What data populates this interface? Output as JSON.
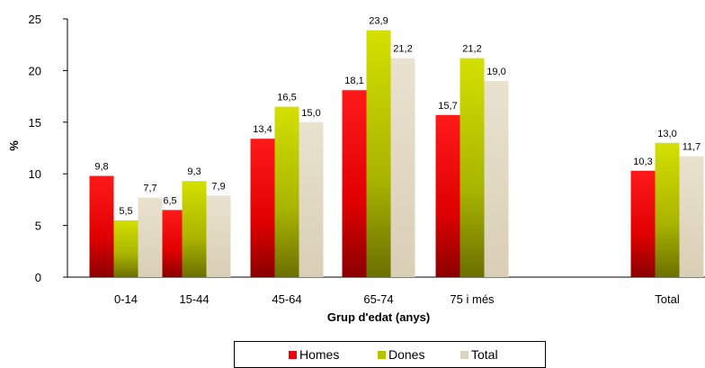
{
  "chart_data": {
    "type": "bar",
    "title": "",
    "xlabel": "Grup d'edat (anys)",
    "ylabel": "%",
    "ylim": [
      0,
      25
    ],
    "yticks": [
      0,
      5,
      10,
      15,
      20,
      25
    ],
    "grid": false,
    "legend_position": "bottom",
    "categories": [
      "0-14",
      "15-44",
      "45-64",
      "65-74",
      "75 i més",
      "",
      "Total"
    ],
    "series": [
      {
        "name": "Homes",
        "color": "#e8000b",
        "values": [
          9.8,
          6.5,
          13.4,
          18.1,
          15.7,
          null,
          10.3
        ],
        "labels": [
          "9,8",
          "6,5",
          "13,4",
          "18,1",
          "15,7",
          "",
          "10,3"
        ]
      },
      {
        "name": "Dones",
        "color": "#b5c200",
        "values": [
          5.5,
          9.3,
          16.5,
          23.9,
          21.2,
          null,
          13.0
        ],
        "labels": [
          "5,5",
          "9,3",
          "16,5",
          "23,9",
          "21,2",
          "",
          "13,0"
        ]
      },
      {
        "name": "Total",
        "color": "#ddd5bf",
        "values": [
          7.7,
          7.9,
          15.0,
          21.2,
          19.0,
          null,
          11.7
        ],
        "labels": [
          "7,7",
          "7,9",
          "15,0",
          "21,2",
          "19,0",
          "",
          "11,7"
        ]
      }
    ]
  }
}
